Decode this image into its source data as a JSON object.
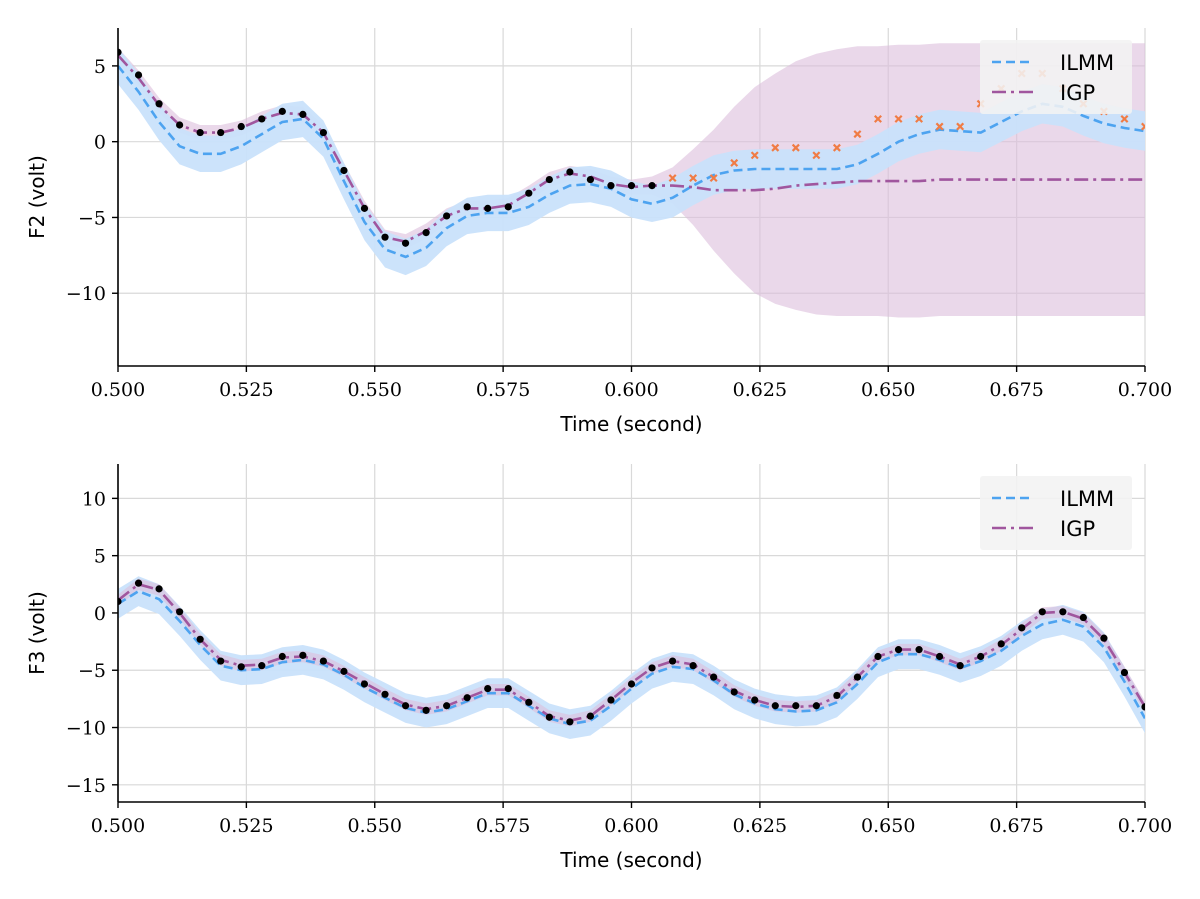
{
  "chart_data": [
    {
      "type": "line",
      "xlabel": "Time (second)",
      "ylabel": "F2 (volt)",
      "xlim": [
        0.5,
        0.7
      ],
      "ylim": [
        -14.8,
        7.5
      ],
      "xticks": [
        0.5,
        0.525,
        0.55,
        0.575,
        0.6,
        0.625,
        0.65,
        0.675,
        0.7
      ],
      "xtick_labels": [
        "0.500",
        "0.525",
        "0.550",
        "0.575",
        "0.600",
        "0.625",
        "0.650",
        "0.675",
        "0.700"
      ],
      "yticks": [
        5,
        0,
        -5,
        -10
      ],
      "ytick_labels": [
        "5",
        "0",
        "−5",
        "−10"
      ],
      "grid": true,
      "legend_position": "top-right",
      "legend": [
        {
          "label": "ILMM",
          "style": "dashed",
          "color": "#4da3f0"
        },
        {
          "label": "IGP",
          "style": "dashdot",
          "color": "#a0569e"
        }
      ],
      "observed": {
        "x": [
          0.5,
          0.504,
          0.508,
          0.512,
          0.516,
          0.52,
          0.524,
          0.528,
          0.532,
          0.536,
          0.54,
          0.544,
          0.548,
          0.552,
          0.556,
          0.56,
          0.564,
          0.568,
          0.572,
          0.576,
          0.58,
          0.584,
          0.588,
          0.592,
          0.596,
          0.6,
          0.604
        ],
        "y": [
          5.9,
          4.4,
          2.5,
          1.1,
          0.6,
          0.6,
          1.0,
          1.5,
          2.0,
          1.8,
          0.6,
          -1.9,
          -4.4,
          -6.3,
          -6.7,
          -6.0,
          -4.9,
          -4.3,
          -4.4,
          -4.3,
          -3.4,
          -2.5,
          -2.0,
          -2.5,
          -2.9,
          -2.9,
          -2.9
        ]
      },
      "held_out": {
        "x": [
          0.608,
          0.612,
          0.616,
          0.62,
          0.624,
          0.628,
          0.632,
          0.636,
          0.64,
          0.644,
          0.648,
          0.652,
          0.656,
          0.66,
          0.664,
          0.668,
          0.672,
          0.676,
          0.68,
          0.684,
          0.688,
          0.692,
          0.696,
          0.7
        ],
        "y": [
          -2.4,
          -2.4,
          -2.4,
          -1.4,
          -0.9,
          -0.4,
          -0.4,
          -0.9,
          -0.4,
          0.5,
          1.5,
          1.5,
          1.5,
          1.0,
          1.0,
          2.5,
          3.5,
          4.5,
          4.5,
          3.5,
          2.5,
          2.0,
          1.5,
          1.0
        ]
      },
      "series": [
        {
          "name": "ILMM",
          "x": [
            0.5,
            0.504,
            0.508,
            0.512,
            0.516,
            0.52,
            0.524,
            0.528,
            0.532,
            0.536,
            0.54,
            0.544,
            0.548,
            0.552,
            0.556,
            0.56,
            0.564,
            0.568,
            0.572,
            0.576,
            0.58,
            0.584,
            0.588,
            0.592,
            0.596,
            0.6,
            0.604,
            0.608,
            0.612,
            0.616,
            0.62,
            0.624,
            0.628,
            0.632,
            0.636,
            0.64,
            0.644,
            0.648,
            0.652,
            0.656,
            0.66,
            0.664,
            0.668,
            0.672,
            0.676,
            0.68,
            0.684,
            0.688,
            0.692,
            0.696,
            0.7
          ],
          "y": [
            5.0,
            3.3,
            1.3,
            -0.3,
            -0.8,
            -0.8,
            -0.3,
            0.5,
            1.3,
            1.5,
            0.2,
            -2.6,
            -5.3,
            -7.1,
            -7.6,
            -7.0,
            -5.7,
            -4.9,
            -4.7,
            -4.7,
            -4.3,
            -3.5,
            -2.9,
            -2.8,
            -3.1,
            -3.8,
            -4.1,
            -3.7,
            -2.9,
            -2.2,
            -1.9,
            -1.8,
            -1.8,
            -1.8,
            -1.8,
            -1.8,
            -1.5,
            -0.8,
            0.0,
            0.5,
            0.8,
            0.7,
            0.6,
            1.3,
            2.0,
            2.5,
            2.3,
            1.7,
            1.2,
            0.9,
            0.7
          ],
          "band": [
            1.2,
            1.2,
            1.2,
            1.2,
            1.2,
            1.2,
            1.2,
            1.2,
            1.2,
            1.2,
            1.2,
            1.2,
            1.2,
            1.2,
            1.2,
            1.2,
            1.2,
            1.2,
            1.2,
            1.2,
            1.2,
            1.2,
            1.2,
            1.2,
            1.2,
            1.2,
            1.2,
            1.3,
            1.3,
            1.3,
            1.3,
            1.3,
            1.3,
            1.3,
            1.3,
            1.3,
            1.3,
            1.3,
            1.3,
            1.3,
            1.3,
            1.3,
            1.3,
            1.3,
            1.3,
            1.3,
            1.3,
            1.3,
            1.3,
            1.3,
            1.3
          ]
        },
        {
          "name": "IGP",
          "x": [
            0.5,
            0.504,
            0.508,
            0.512,
            0.516,
            0.52,
            0.524,
            0.528,
            0.532,
            0.536,
            0.54,
            0.544,
            0.548,
            0.552,
            0.556,
            0.56,
            0.564,
            0.568,
            0.572,
            0.576,
            0.58,
            0.584,
            0.588,
            0.592,
            0.596,
            0.6,
            0.604,
            0.608,
            0.612,
            0.616,
            0.62,
            0.624,
            0.628,
            0.632,
            0.636,
            0.64,
            0.644,
            0.648,
            0.652,
            0.656,
            0.66,
            0.664,
            0.668,
            0.672,
            0.676,
            0.68,
            0.684,
            0.688,
            0.692,
            0.696,
            0.7
          ],
          "y": [
            5.7,
            4.2,
            2.4,
            1.1,
            0.6,
            0.6,
            0.9,
            1.5,
            1.9,
            1.8,
            0.6,
            -1.9,
            -4.4,
            -6.3,
            -6.6,
            -5.9,
            -4.9,
            -4.4,
            -4.4,
            -4.2,
            -3.4,
            -2.5,
            -2.1,
            -2.3,
            -2.8,
            -3.0,
            -2.9,
            -2.9,
            -3.0,
            -3.2,
            -3.2,
            -3.2,
            -3.1,
            -2.9,
            -2.8,
            -2.7,
            -2.6,
            -2.6,
            -2.6,
            -2.6,
            -2.5,
            -2.5,
            -2.5,
            -2.5,
            -2.5,
            -2.5,
            -2.5,
            -2.5,
            -2.5,
            -2.5,
            -2.5
          ],
          "band": [
            0.5,
            0.5,
            0.5,
            0.5,
            0.5,
            0.5,
            0.5,
            0.5,
            0.5,
            0.5,
            0.5,
            0.5,
            0.5,
            0.5,
            0.5,
            0.5,
            0.5,
            0.5,
            0.5,
            0.5,
            0.5,
            0.5,
            0.5,
            0.5,
            0.5,
            0.5,
            0.6,
            1.2,
            2.5,
            4.0,
            5.5,
            6.8,
            7.6,
            8.2,
            8.6,
            8.8,
            8.9,
            8.9,
            9.0,
            9.0,
            9.0,
            9.0,
            9.0,
            9.0,
            9.0,
            9.0,
            9.0,
            9.0,
            9.0,
            9.0,
            9.0
          ]
        }
      ]
    },
    {
      "type": "line",
      "xlabel": "Time (second)",
      "ylabel": "F3 (volt)",
      "xlim": [
        0.5,
        0.7
      ],
      "ylim": [
        -16.5,
        13.0
      ],
      "xticks": [
        0.5,
        0.525,
        0.55,
        0.575,
        0.6,
        0.625,
        0.65,
        0.675,
        0.7
      ],
      "xtick_labels": [
        "0.500",
        "0.525",
        "0.550",
        "0.575",
        "0.600",
        "0.625",
        "0.650",
        "0.675",
        "0.700"
      ],
      "yticks": [
        10,
        5,
        0,
        -5,
        -10,
        -15
      ],
      "ytick_labels": [
        "10",
        "5",
        "0",
        "−5",
        "−10",
        "−15"
      ],
      "grid": true,
      "legend_position": "top-right",
      "legend": [
        {
          "label": "ILMM",
          "style": "dashed",
          "color": "#4da3f0"
        },
        {
          "label": "IGP",
          "style": "dashdot",
          "color": "#a0569e"
        }
      ],
      "observed": {
        "x": [
          0.5,
          0.504,
          0.508,
          0.512,
          0.516,
          0.52,
          0.524,
          0.528,
          0.532,
          0.536,
          0.54,
          0.544,
          0.548,
          0.552,
          0.556,
          0.56,
          0.564,
          0.568,
          0.572,
          0.576,
          0.58,
          0.584,
          0.588,
          0.592,
          0.596,
          0.6,
          0.604,
          0.608,
          0.612,
          0.616,
          0.62,
          0.624,
          0.628,
          0.632,
          0.636,
          0.64,
          0.644,
          0.648,
          0.652,
          0.656,
          0.66,
          0.664,
          0.668,
          0.672,
          0.676,
          0.68,
          0.684,
          0.688,
          0.692,
          0.696,
          0.7
        ],
        "y": [
          1.0,
          2.6,
          2.1,
          0.1,
          -2.3,
          -4.2,
          -4.7,
          -4.6,
          -3.8,
          -3.7,
          -4.2,
          -5.1,
          -6.2,
          -7.1,
          -8.1,
          -8.5,
          -8.1,
          -7.4,
          -6.6,
          -6.6,
          -7.8,
          -9.1,
          -9.5,
          -9.0,
          -7.6,
          -6.2,
          -4.8,
          -4.2,
          -4.6,
          -5.6,
          -6.9,
          -7.6,
          -8.1,
          -8.1,
          -8.1,
          -7.2,
          -5.6,
          -3.8,
          -3.2,
          -3.2,
          -3.8,
          -4.6,
          -3.8,
          -2.7,
          -1.3,
          0.1,
          0.1,
          -0.4,
          -2.2,
          -5.2,
          -8.2
        ]
      },
      "series": [
        {
          "name": "ILMM",
          "x": [
            0.5,
            0.504,
            0.508,
            0.512,
            0.516,
            0.52,
            0.524,
            0.528,
            0.532,
            0.536,
            0.54,
            0.544,
            0.548,
            0.552,
            0.556,
            0.56,
            0.564,
            0.568,
            0.572,
            0.576,
            0.58,
            0.584,
            0.588,
            0.592,
            0.596,
            0.6,
            0.604,
            0.608,
            0.612,
            0.616,
            0.62,
            0.624,
            0.628,
            0.632,
            0.636,
            0.64,
            0.644,
            0.648,
            0.652,
            0.656,
            0.66,
            0.664,
            0.668,
            0.672,
            0.676,
            0.68,
            0.684,
            0.688,
            0.692,
            0.696,
            0.7
          ],
          "y": [
            0.8,
            1.9,
            1.2,
            -0.7,
            -2.8,
            -4.6,
            -5.0,
            -4.9,
            -4.3,
            -4.1,
            -4.5,
            -5.4,
            -6.5,
            -7.4,
            -8.3,
            -8.7,
            -8.4,
            -7.7,
            -7.0,
            -7.0,
            -8.1,
            -9.2,
            -9.7,
            -9.4,
            -8.1,
            -6.6,
            -5.3,
            -4.7,
            -4.9,
            -5.9,
            -7.1,
            -7.9,
            -8.4,
            -8.6,
            -8.5,
            -7.8,
            -6.2,
            -4.3,
            -3.6,
            -3.6,
            -4.1,
            -4.8,
            -4.2,
            -3.3,
            -2.0,
            -1.0,
            -0.6,
            -1.2,
            -3.0,
            -6.0,
            -9.2
          ],
          "band": [
            1.3,
            1.3,
            1.3,
            1.3,
            1.3,
            1.3,
            1.3,
            1.3,
            1.3,
            1.3,
            1.3,
            1.3,
            1.3,
            1.3,
            1.3,
            1.3,
            1.3,
            1.3,
            1.3,
            1.3,
            1.3,
            1.3,
            1.3,
            1.3,
            1.3,
            1.3,
            1.3,
            1.3,
            1.3,
            1.3,
            1.3,
            1.3,
            1.3,
            1.3,
            1.3,
            1.3,
            1.3,
            1.3,
            1.3,
            1.3,
            1.3,
            1.3,
            1.3,
            1.3,
            1.3,
            1.3,
            1.3,
            1.3,
            1.3,
            1.3,
            1.3
          ]
        },
        {
          "name": "IGP",
          "x": [
            0.5,
            0.504,
            0.508,
            0.512,
            0.516,
            0.52,
            0.524,
            0.528,
            0.532,
            0.536,
            0.54,
            0.544,
            0.548,
            0.552,
            0.556,
            0.56,
            0.564,
            0.568,
            0.572,
            0.576,
            0.58,
            0.584,
            0.588,
            0.592,
            0.596,
            0.6,
            0.604,
            0.608,
            0.612,
            0.616,
            0.62,
            0.624,
            0.628,
            0.632,
            0.636,
            0.64,
            0.644,
            0.648,
            0.652,
            0.656,
            0.66,
            0.664,
            0.668,
            0.672,
            0.676,
            0.68,
            0.684,
            0.688,
            0.692,
            0.696,
            0.7
          ],
          "y": [
            1.1,
            2.5,
            2.0,
            0.0,
            -2.3,
            -4.1,
            -4.6,
            -4.5,
            -3.9,
            -3.8,
            -4.2,
            -5.1,
            -6.1,
            -7.1,
            -8.0,
            -8.4,
            -8.1,
            -7.4,
            -6.7,
            -6.7,
            -7.8,
            -9.0,
            -9.4,
            -9.0,
            -7.6,
            -6.1,
            -4.8,
            -4.2,
            -4.5,
            -5.6,
            -6.8,
            -7.6,
            -8.1,
            -8.2,
            -8.1,
            -7.3,
            -5.6,
            -3.8,
            -3.2,
            -3.2,
            -3.8,
            -4.5,
            -3.8,
            -2.8,
            -1.4,
            0.0,
            0.1,
            -0.5,
            -2.3,
            -5.2,
            -8.2
          ],
          "band": [
            0.5,
            0.5,
            0.5,
            0.5,
            0.5,
            0.5,
            0.5,
            0.5,
            0.5,
            0.5,
            0.5,
            0.5,
            0.5,
            0.5,
            0.5,
            0.5,
            0.5,
            0.5,
            0.5,
            0.5,
            0.5,
            0.5,
            0.5,
            0.5,
            0.5,
            0.5,
            0.5,
            0.5,
            0.5,
            0.5,
            0.5,
            0.5,
            0.5,
            0.5,
            0.5,
            0.5,
            0.5,
            0.5,
            0.5,
            0.5,
            0.5,
            0.5,
            0.5,
            0.5,
            0.5,
            0.5,
            0.5,
            0.5,
            0.5,
            0.5,
            0.5
          ]
        }
      ]
    }
  ],
  "colors": {
    "ilmm": "#4da3f0",
    "ilmm_band": "#c9e1fb",
    "igp": "#a0569e",
    "igp_band": "#dcbedc",
    "observed": "#000000",
    "held_out": "#f07c45",
    "grid": "#d9d9d9",
    "legend_bg": "#f2f2f2"
  }
}
